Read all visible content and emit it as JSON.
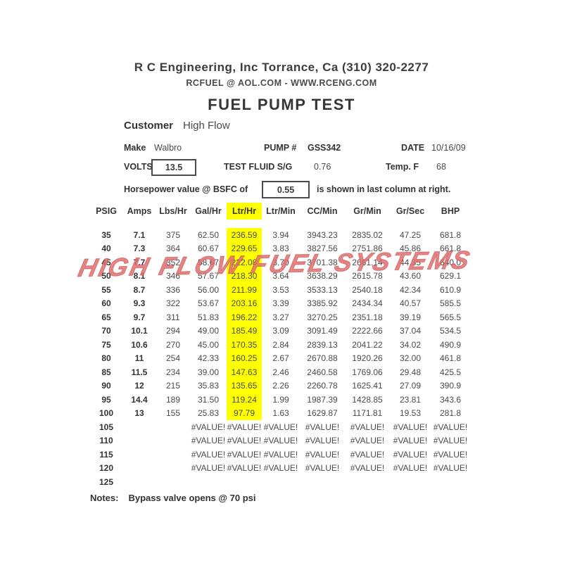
{
  "header": {
    "company_line": "R C Engineering, Inc  Torrance,  Ca  (310) 320-2277",
    "contact_line": "RCFUEL @ AOL.COM -  WWW.RCENG.COM",
    "title": "FUEL PUMP TEST"
  },
  "info": {
    "customer_label": "Customer",
    "customer_value": "High Flow",
    "make_label": "Make",
    "make_value": "Walbro",
    "pump_label": "PUMP #",
    "pump_value": "GSS342",
    "date_label": "DATE",
    "date_value": "10/16/09",
    "volts_label": "VOLTS",
    "volts_value": "13.5",
    "test_fluid_label": "TEST FLUID  S/G",
    "test_fluid_value": "0.76",
    "temp_label": "Temp.  F",
    "temp_value": "68",
    "bsfc_prefix": "Horsepower value @  BSFC of",
    "bsfc_value": "0.55",
    "bsfc_suffix": "is shown in last column at right."
  },
  "watermark_text": "HIGH FLOW FUEL SYSTEMS",
  "table": {
    "columns": [
      "PSIG",
      "Amps",
      "Lbs/Hr",
      "Gal/Hr",
      "Ltr/Hr",
      "Ltr/Min",
      "CC/Min",
      "Gr/Min",
      "Gr/Sec",
      "BHP"
    ],
    "highlight": {
      "column_index": 4,
      "row_count": 14,
      "color": "#ffff00"
    },
    "bold_column_count": 2,
    "rows": [
      [
        "35",
        "7.1",
        "375",
        "62.50",
        "236.59",
        "3.94",
        "3943.23",
        "2835.02",
        "47.25",
        "681.8"
      ],
      [
        "40",
        "7.3",
        "364",
        "60.67",
        "229.65",
        "3.83",
        "3827.56",
        "2751.86",
        "45.86",
        "661.8"
      ],
      [
        "45",
        "7.7",
        "352",
        "58.67",
        "222.08",
        "3.70",
        "3701.38",
        "2661.14",
        "44.35",
        "640.0"
      ],
      [
        "50",
        "8.1",
        "346",
        "57.67",
        "218.30",
        "3.64",
        "3638.29",
        "2615.78",
        "43.60",
        "629.1"
      ],
      [
        "55",
        "8.7",
        "336",
        "56.00",
        "211.99",
        "3.53",
        "3533.13",
        "2540.18",
        "42.34",
        "610.9"
      ],
      [
        "60",
        "9.3",
        "322",
        "53.67",
        "203.16",
        "3.39",
        "3385.92",
        "2434.34",
        "40.57",
        "585.5"
      ],
      [
        "65",
        "9.7",
        "311",
        "51.83",
        "196.22",
        "3.27",
        "3270.25",
        "2351.18",
        "39.19",
        "565.5"
      ],
      [
        "70",
        "10.1",
        "294",
        "49.00",
        "185.49",
        "3.09",
        "3091.49",
        "2222.66",
        "37.04",
        "534.5"
      ],
      [
        "75",
        "10.6",
        "270",
        "45.00",
        "170.35",
        "2.84",
        "2839.13",
        "2041.22",
        "34.02",
        "490.9"
      ],
      [
        "80",
        "11",
        "254",
        "42.33",
        "160.25",
        "2.67",
        "2670.88",
        "1920.26",
        "32.00",
        "461.8"
      ],
      [
        "85",
        "11.5",
        "234",
        "39.00",
        "147.63",
        "2.46",
        "2460.58",
        "1769.06",
        "29.48",
        "425.5"
      ],
      [
        "90",
        "12",
        "215",
        "35.83",
        "135.65",
        "2.26",
        "2260.78",
        "1625.41",
        "27.09",
        "390.9"
      ],
      [
        "95",
        "14.4",
        "189",
        "31.50",
        "119.24",
        "1.99",
        "1987.39",
        "1428.85",
        "23.81",
        "343.6"
      ],
      [
        "100",
        "13",
        "155",
        "25.83",
        "97.79",
        "1.63",
        "1629.87",
        "1171.81",
        "19.53",
        "281.8"
      ],
      [
        "105",
        "",
        "",
        "#VALUE!",
        "#VALUE!",
        "#VALUE!",
        "#VALUE!",
        "#VALUE!",
        "#VALUE!",
        "#VALUE!"
      ],
      [
        "110",
        "",
        "",
        "#VALUE!",
        "#VALUE!",
        "#VALUE!",
        "#VALUE!",
        "#VALUE!",
        "#VALUE!",
        "#VALUE!"
      ],
      [
        "115",
        "",
        "",
        "#VALUE!",
        "#VALUE!",
        "#VALUE!",
        "#VALUE!",
        "#VALUE!",
        "#VALUE!",
        "#VALUE!"
      ],
      [
        "120",
        "",
        "",
        "#VALUE!",
        "#VALUE!",
        "#VALUE!",
        "#VALUE!",
        "#VALUE!",
        "#VALUE!",
        "#VALUE!"
      ],
      [
        "125",
        "",
        "",
        "",
        "",
        "",
        "",
        "",
        "",
        ""
      ]
    ]
  },
  "notes": {
    "label": "Notes:",
    "text": "Bypass valve opens @ 70 psi"
  },
  "colors": {
    "highlight": "#ffff00",
    "watermark": "#e06e6e",
    "text": "#3a3a3a"
  }
}
